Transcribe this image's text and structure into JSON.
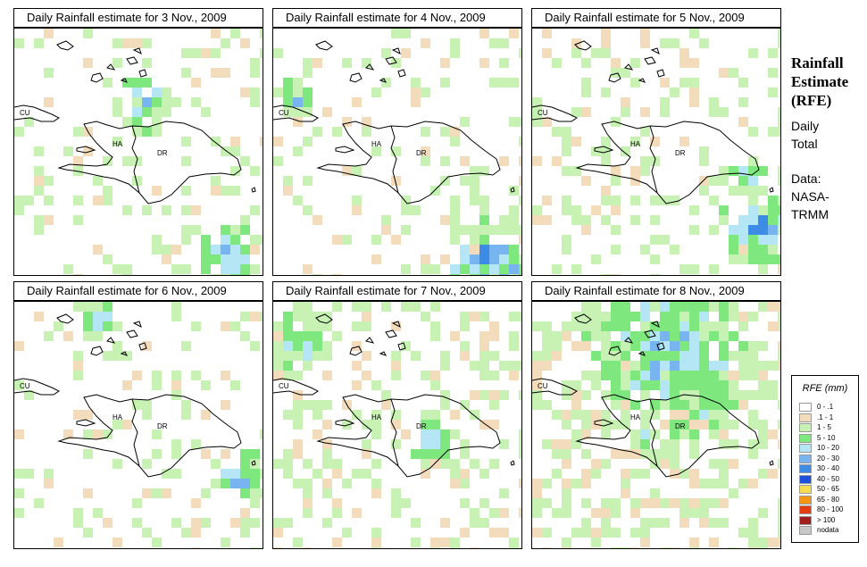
{
  "panels": [
    {
      "title": "Daily Rainfall estimate for  3 Nov., 2009"
    },
    {
      "title": "Daily Rainfall estimate for  4 Nov., 2009"
    },
    {
      "title": "Daily Rainfall estimate for  5 Nov., 2009"
    },
    {
      "title": "Daily Rainfall estimate for  6 Nov., 2009"
    },
    {
      "title": "Daily Rainfall estimate for  7 Nov., 2009"
    },
    {
      "title": "Daily Rainfall estimate for  8 Nov., 2009"
    }
  ],
  "map_labels": {
    "cu": "CU",
    "ha": "HA",
    "dr": "DR"
  },
  "side": {
    "title_line1": "Rainfall",
    "title_line2": "Estimate",
    "title_line3": "(RFE)",
    "daily_line1": "Daily",
    "daily_line2": "Total",
    "data_line1": "Data:",
    "data_line2": "NASA-",
    "data_line3": "TRMM"
  },
  "legend": {
    "title": "RFE (mm)",
    "items": [
      {
        "label": "0 - .1",
        "color": "#ffffff"
      },
      {
        "label": ".1 - 1",
        "color": "#f2dcbb"
      },
      {
        "label": "1 - 5",
        "color": "#c8f2b4"
      },
      {
        "label": "5 - 10",
        "color": "#7ee87e"
      },
      {
        "label": "10 - 20",
        "color": "#b4e6f5"
      },
      {
        "label": "20 - 30",
        "color": "#78b4f0"
      },
      {
        "label": "30 - 40",
        "color": "#3c8ce6"
      },
      {
        "label": "40 - 50",
        "color": "#1e50dc"
      },
      {
        "label": "50 - 65",
        "color": "#f5dc50"
      },
      {
        "label": "65 - 80",
        "color": "#f59614"
      },
      {
        "label": "80 - 100",
        "color": "#e63c14"
      },
      {
        "label": "> 100",
        "color": "#a01e1e"
      },
      {
        "label": "nodata",
        "color": "#c8c8c8"
      }
    ]
  }
}
